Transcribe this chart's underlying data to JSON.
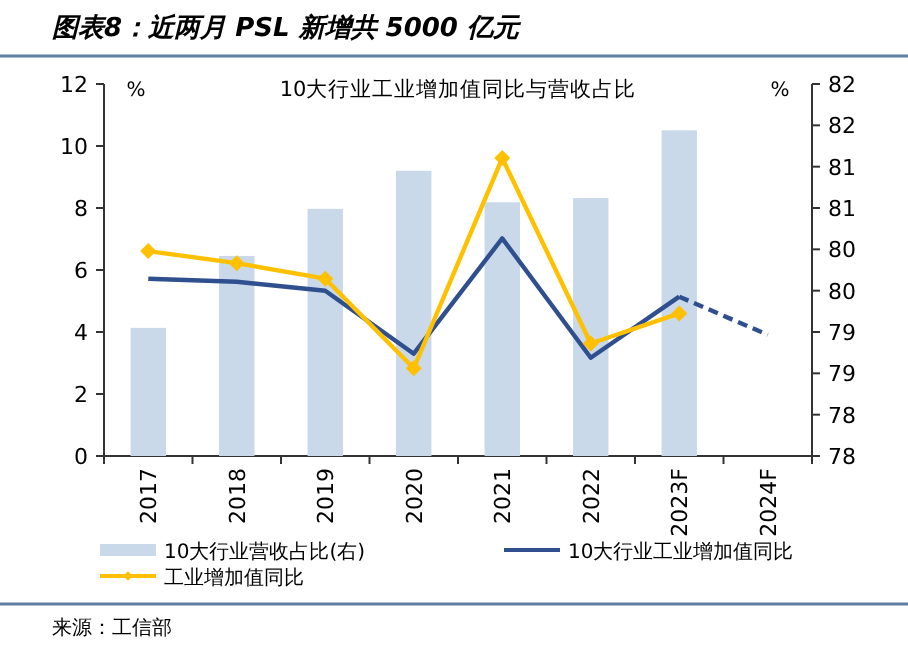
{
  "chart_data": {
    "type": "bar",
    "title": "图表8：近两月 PSL 新增共 5000 亿元",
    "subtitle": "10大行业工业增加值同比与营收占比",
    "ylabel": "%",
    "y2label": "%",
    "categories": [
      "2017",
      "2018",
      "2019",
      "2020",
      "2021",
      "2022",
      "2023F",
      "2024F"
    ],
    "series": [
      {
        "name": "10大行业营收占比(右)",
        "axis": "y2",
        "color": "#c9d9ea",
        "values": [
          79.55,
          80.42,
          80.99,
          81.45,
          81.07,
          81.12,
          81.94,
          null
        ]
      },
      {
        "name": "10大行业工业增加值同比",
        "type": "line",
        "color": "#2f4f8f",
        "marker": "none",
        "line_style": "solid",
        "values": [
          5.72,
          5.62,
          5.33,
          3.3,
          7.02,
          3.17,
          5.14,
          null
        ]
      },
      {
        "type": "line",
        "color": "#2f4f8f",
        "marker": "none",
        "line_style": "dashed",
        "values": [
          null,
          null,
          null,
          null,
          null,
          null,
          5.14,
          3.91
        ]
      },
      {
        "name": "工业增加值同比",
        "type": "line",
        "color": "#ffc000",
        "marker": "diamond",
        "line_style": "solid",
        "values": [
          6.61,
          6.22,
          5.72,
          2.83,
          9.61,
          3.63,
          4.6,
          null
        ]
      }
    ],
    "ylim": [
      0,
      12
    ],
    "yticks": [
      0,
      2,
      4,
      6,
      8,
      10,
      12
    ],
    "y2lim": [
      78,
      82.5
    ],
    "y2ticks": [
      78,
      {
        "value": 78.5,
        "label": "78"
      },
      79,
      {
        "value": 79.5,
        "label": "79"
      },
      80,
      {
        "value": 80.5,
        "label": "80"
      },
      81,
      {
        "value": 81.5,
        "label": "81"
      },
      82,
      {
        "value": 82.5,
        "label": "82"
      }
    ],
    "grid": false,
    "legend": "bottom",
    "annotations": [
      "来源：工信部"
    ]
  }
}
